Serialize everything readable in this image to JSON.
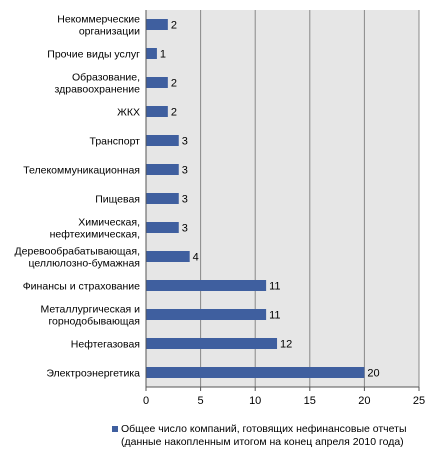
{
  "chart_data": {
    "type": "bar",
    "orientation": "horizontal",
    "categories": [
      "Некоммерческие\nорганизации",
      "Прочие виды услуг",
      "Образование,\nздравоохранение",
      "ЖКХ",
      "Транспорт",
      "Телекоммуникационная",
      "Пищевая",
      "Химическая,\nнефтехимическая,",
      "Деревообрабатывающая,\nцеллюлозно-бумажная",
      "Финансы и страхование",
      "Металлургическая и\nгорнодобывающая",
      "Нефтегазовая",
      "Электроэнергетика"
    ],
    "series": [
      {
        "name": "Общее число компаний, готовящих нефинансовые отчеты (данные накопленным итогом на конец апреля 2010 года)",
        "values": [
          2,
          1,
          2,
          2,
          3,
          3,
          3,
          3,
          4,
          11,
          11,
          12,
          20
        ]
      }
    ],
    "xlim": [
      0,
      25
    ],
    "xticks": [
      0,
      5,
      10,
      15,
      20,
      25
    ],
    "grid": true,
    "data_labels": true,
    "legend_position": "bottom",
    "colors": {
      "bar": "#3f5f9f",
      "plot_bg": "#e6e6e6",
      "grid": "#888888"
    }
  }
}
